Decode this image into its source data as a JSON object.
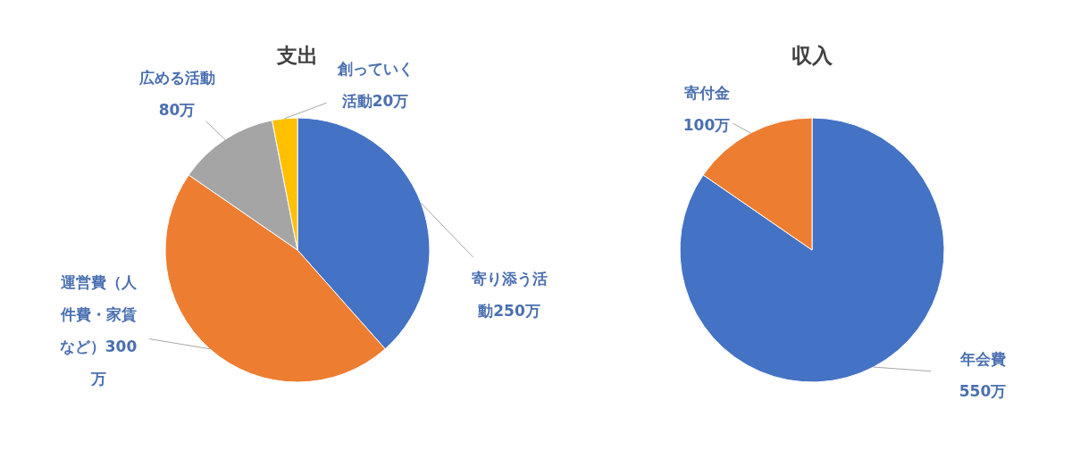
{
  "chart_data": [
    {
      "type": "pie",
      "title": "支出",
      "categories": [
        "寄り添う活動",
        "運営費（人件費・家賃など）",
        "広める活動",
        "創っていく活動"
      ],
      "values": [
        250,
        300,
        80,
        20
      ],
      "value_labels": [
        "250万",
        "300万",
        "80万",
        "20万"
      ],
      "colors": [
        "#4472c4",
        "#ed7d31",
        "#a5a5a5",
        "#ffc000"
      ]
    },
    {
      "type": "pie",
      "title": "収入",
      "categories": [
        "年会費",
        "寄付金"
      ],
      "values": [
        550,
        100
      ],
      "value_labels": [
        "550万",
        "100万"
      ],
      "colors": [
        "#4472c4",
        "#ed7d31"
      ]
    }
  ]
}
